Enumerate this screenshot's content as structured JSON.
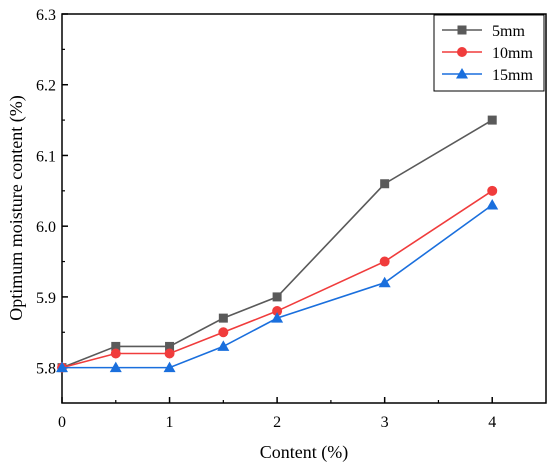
{
  "chart_data": {
    "type": "line",
    "title": "",
    "xlabel": "Content (%)",
    "ylabel": "Optimum moisture content (%)",
    "xlim": [
      0,
      4.5
    ],
    "ylim": [
      5.75,
      6.3
    ],
    "x_ticks": [
      0,
      1,
      2,
      3,
      4
    ],
    "x_tick_labels": [
      "0",
      "1",
      "2",
      "3",
      "4"
    ],
    "y_ticks": [
      5.8,
      5.9,
      6.0,
      6.1,
      6.2,
      6.3
    ],
    "y_tick_labels": [
      "5.8",
      "5.9",
      "6.0",
      "6.1",
      "6.2",
      "6.3"
    ],
    "grid": false,
    "legend_position": "top-right",
    "x": [
      0,
      0.5,
      1,
      1.5,
      2,
      3,
      4
    ],
    "series": [
      {
        "name": "5mm",
        "color": "#5a5a5a",
        "marker": "square",
        "values": [
          5.8,
          5.83,
          5.83,
          5.87,
          5.9,
          6.06,
          6.15
        ]
      },
      {
        "name": "10mm",
        "color": "#f03c3c",
        "marker": "circle",
        "values": [
          5.8,
          5.82,
          5.82,
          5.85,
          5.88,
          5.95,
          6.05
        ]
      },
      {
        "name": "15mm",
        "color": "#1a6fdd",
        "marker": "triangle",
        "values": [
          5.8,
          5.8,
          5.8,
          5.83,
          5.87,
          5.92,
          6.03
        ]
      }
    ]
  }
}
